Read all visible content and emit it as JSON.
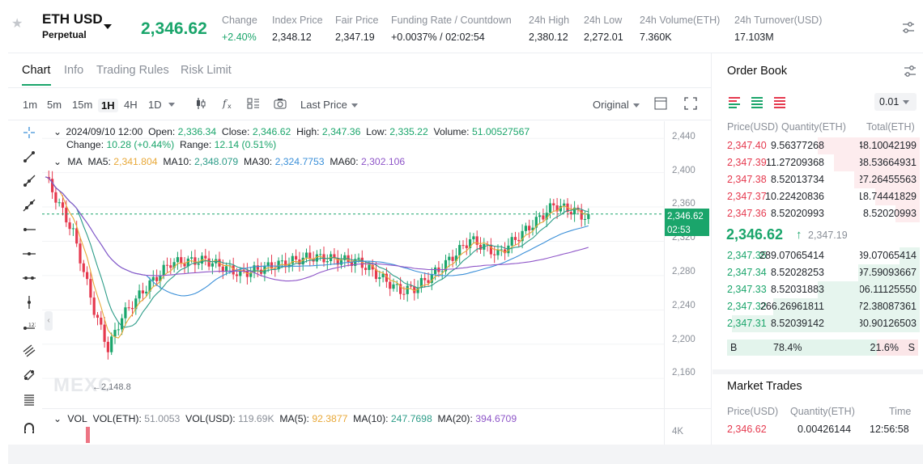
{
  "header": {
    "symbol": "ETH USD",
    "contract": "Perpetual",
    "last_price": "2,346.62",
    "stats": [
      {
        "label": "Change",
        "value": "+2.40%",
        "color": "#1aa56b"
      },
      {
        "label": "Index Price",
        "value": "2,348.12"
      },
      {
        "label": "Fair Price",
        "value": "2,347.19"
      },
      {
        "label": "Funding Rate / Countdown",
        "value": "+0.0037% / 02:02:54"
      },
      {
        "label": "24h High",
        "value": "2,380.12"
      },
      {
        "label": "24h Low",
        "value": "2,272.01"
      },
      {
        "label": "24h Volume(ETH)",
        "value": "7.360K"
      },
      {
        "label": "24h Turnover(USD)",
        "value": "17.103M"
      }
    ]
  },
  "tabs": [
    "Chart",
    "Info",
    "Trading Rules",
    "Risk Limit"
  ],
  "toolbar": {
    "intervals": [
      "1m",
      "5m",
      "15m",
      "1H",
      "4H",
      "1D"
    ],
    "selected_interval": "1H",
    "price_type": "Last Price",
    "view_mode": "Original"
  },
  "legend": {
    "date": "2024/09/10 12:00",
    "open_label": "Open:",
    "open": "2,336.34",
    "close_label": "Close:",
    "close": "2,346.62",
    "high_label": "High:",
    "high": "2,347.36",
    "low_label": "Low:",
    "low": "2,335.22",
    "volume_label": "Volume:",
    "volume": "51.00527567",
    "change_label": "Change:",
    "change": "10.28 (+0.44%)",
    "range_label": "Range:",
    "range": "12.14 (0.51%)",
    "ma_label": "MA",
    "ma5_label": "MA5:",
    "ma5": "2,341.804",
    "ma10_label": "MA10:",
    "ma10": "2,348.079",
    "ma30_label": "MA30:",
    "ma30": "2,324.7753",
    "ma60_label": "MA60:",
    "ma60": "2,302.106",
    "low_marker": "2,148.8"
  },
  "volume_legend": {
    "label": "VOL",
    "eth_label": "VOL(ETH):",
    "eth": "51.0053",
    "usd_label": "VOL(USD):",
    "usd": "119.69K",
    "ma5_label": "MA(5):",
    "ma5": "92.3877",
    "ma10_label": "MA(10):",
    "ma10": "247.7698",
    "ma20_label": "MA(20):",
    "ma20": "394.6709",
    "axis_label": "4K"
  },
  "price_axis": [
    "2,440",
    "2,400",
    "2,360",
    "2,320",
    "2,280",
    "2,240",
    "2,200",
    "2,160"
  ],
  "price_tag": {
    "price": "2,346.62",
    "countdown": "02:53"
  },
  "watermark": "MEXC",
  "order_book": {
    "title": "Order Book",
    "precision": "0.01",
    "headers": [
      "Price(USD)",
      "Quantity(ETH)",
      "Total(ETH)"
    ],
    "asks": [
      {
        "price": "2,347.40",
        "qty": "9.56377268",
        "total": "48.10042199",
        "depth": 0.5
      },
      {
        "price": "2,347.39",
        "qty": "11.27209368",
        "total": "38.53664931",
        "depth": 0.42
      },
      {
        "price": "2,347.38",
        "qty": "8.52013734",
        "total": "27.26455563",
        "depth": 0.32
      },
      {
        "price": "2,347.37",
        "qty": "10.22420836",
        "total": "18.74441829",
        "depth": 0.22
      },
      {
        "price": "2,347.36",
        "qty": "8.52020993",
        "total": "8.52020993",
        "depth": 0.12
      }
    ],
    "mid_price": "2,346.62",
    "mid_index": "2,347.19",
    "bids": [
      {
        "price": "2,347.35",
        "qty": "289.07065414",
        "total": "289.07065414",
        "depth": 0.1
      },
      {
        "price": "2,347.34",
        "qty": "8.52028253",
        "total": "297.59093667",
        "depth": 0.3
      },
      {
        "price": "2,347.33",
        "qty": "8.52031883",
        "total": "306.11125550",
        "depth": 0.5
      },
      {
        "price": "2,347.32",
        "qty": "266.26961811",
        "total": "572.38087361",
        "depth": 0.72
      },
      {
        "price": "2,347.31",
        "qty": "8.52039142",
        "total": "580.90126503",
        "depth": 0.92
      }
    ],
    "buy_label": "B",
    "buy_pct": "78.4%",
    "buy_ratio": 0.784,
    "sell_label": "S",
    "sell_pct": "21.6%"
  },
  "market_trades": {
    "title": "Market Trades",
    "headers": [
      "Price(USD)",
      "Quantity(ETH)",
      "Time"
    ],
    "rows": [
      {
        "price": "2,346.62",
        "qty": "0.00426144",
        "time": "12:56:58"
      }
    ]
  },
  "colors": {
    "up": "#1aa56b",
    "down": "#e5394e",
    "ma5": "#e8a838",
    "ma10": "#2c9c88",
    "ma30": "#3a8fd8",
    "ma60": "#8e55c8"
  }
}
